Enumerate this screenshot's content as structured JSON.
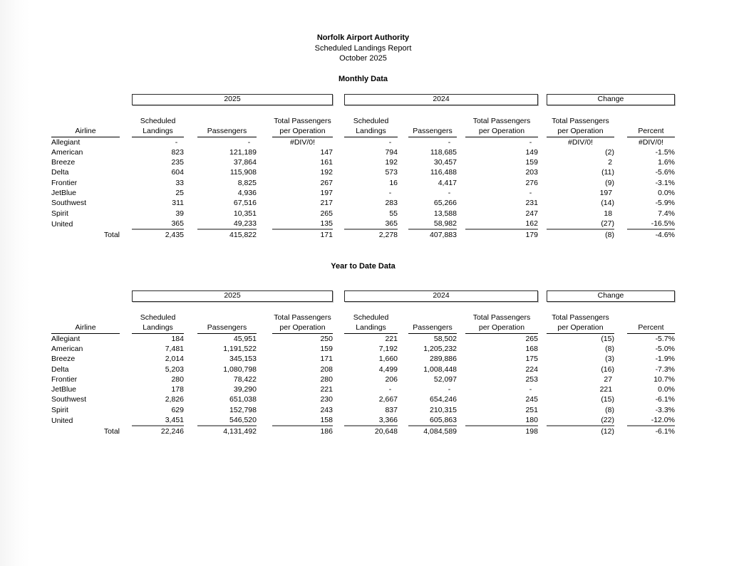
{
  "report": {
    "title": "Norfolk Airport Authority",
    "subtitle": "Scheduled Landings Report",
    "period": "October 2025"
  },
  "sections": [
    {
      "heading": "Monthly Data",
      "group_labels": [
        "2025",
        "2024",
        "Change"
      ],
      "headers_line1": [
        "",
        "Scheduled",
        "",
        "Total Passengers",
        "Scheduled",
        "",
        "Total Passengers",
        "Total Passengers",
        ""
      ],
      "headers_line2": [
        "Airline",
        "Landings",
        "Passengers",
        "per Operation",
        "Landings",
        "Passengers",
        "per Operation",
        "per Operation",
        "Percent"
      ],
      "rows": [
        {
          "airline": "Allegiant",
          "values": [
            "-   ",
            "-   ",
            "#DIV/0!",
            "-   ",
            "-   ",
            "-   ",
            "#DIV/0!",
            "#DIV/0!"
          ]
        },
        {
          "airline": "American",
          "values": [
            "823",
            "121,189",
            "147",
            "794",
            "118,685",
            "149",
            "(2)",
            "-1.5%"
          ]
        },
        {
          "airline": "Breeze",
          "values": [
            "235",
            "37,864",
            "161",
            "192",
            "30,457",
            "159",
            "2 ",
            "1.6%"
          ]
        },
        {
          "airline": "Delta",
          "values": [
            "604",
            "115,908",
            "192",
            "573",
            "116,488",
            "203",
            "(11)",
            "-5.6%"
          ]
        },
        {
          "airline": "Frontier",
          "values": [
            "33",
            "8,825",
            "267",
            "16",
            "4,417",
            "276",
            "(9)",
            "-3.1%"
          ]
        },
        {
          "airline": "JetBlue",
          "values": [
            "25",
            "4,936",
            "197",
            "-   ",
            "-   ",
            "-   ",
            "197 ",
            "0.0%"
          ]
        },
        {
          "airline": "Southwest",
          "values": [
            "311",
            "67,516",
            "217",
            "283",
            "65,266",
            "231",
            "(14)",
            "-5.9%"
          ]
        },
        {
          "airline": "Spirit",
          "values": [
            "39",
            "10,351",
            "265",
            "55",
            "13,588",
            "247",
            "18 ",
            "7.4%"
          ]
        },
        {
          "airline": "United",
          "values": [
            "365",
            "49,233",
            "135",
            "365",
            "58,982",
            "162",
            "(27)",
            "-16.5%"
          ]
        }
      ],
      "total": {
        "label": "Total",
        "values": [
          "2,435",
          "415,822",
          "171",
          "2,278",
          "407,883",
          "179",
          "(8)",
          "-4.6%"
        ]
      }
    },
    {
      "heading": "Year to Date Data",
      "group_labels": [
        "2025",
        "2024",
        "Change"
      ],
      "headers_line1": [
        "",
        "Scheduled",
        "",
        "Total Passengers",
        "Scheduled",
        "",
        "Total Passengers",
        "Total Passengers",
        ""
      ],
      "headers_line2": [
        "Airline",
        "Landings",
        "Passengers",
        "per Operation",
        "Landings",
        "Passengers",
        "per Operation",
        "per Operation",
        "Percent"
      ],
      "rows": [
        {
          "airline": "Allegiant",
          "values": [
            "184",
            "45,951",
            "250",
            "221",
            "58,502",
            "265",
            "(15)",
            "-5.7%"
          ]
        },
        {
          "airline": "American",
          "values": [
            "7,481",
            "1,191,522",
            "159",
            "7,192",
            "1,205,232",
            "168",
            "(8)",
            "-5.0%"
          ]
        },
        {
          "airline": "Breeze",
          "values": [
            "2,014",
            "345,153",
            "171",
            "1,660",
            "289,886",
            "175",
            "(3)",
            "-1.9%"
          ]
        },
        {
          "airline": "Delta",
          "values": [
            "5,203",
            "1,080,798",
            "208",
            "4,499",
            "1,008,448",
            "224",
            "(16)",
            "-7.3%"
          ]
        },
        {
          "airline": "Frontier",
          "values": [
            "280",
            "78,422",
            "280",
            "206",
            "52,097",
            "253",
            "27 ",
            "10.7%"
          ]
        },
        {
          "airline": "JetBlue",
          "values": [
            "178",
            "39,290",
            "221",
            "-   ",
            "-   ",
            "-   ",
            "221 ",
            "0.0%"
          ]
        },
        {
          "airline": "Southwest",
          "values": [
            "2,826",
            "651,038",
            "230",
            "2,667",
            "654,246",
            "245",
            "(15)",
            "-6.1%"
          ]
        },
        {
          "airline": "Spirit",
          "values": [
            "629",
            "152,798",
            "243",
            "837",
            "210,315",
            "251",
            "(8)",
            "-3.3%"
          ]
        },
        {
          "airline": "United",
          "values": [
            "3,451",
            "546,520",
            "158",
            "3,366",
            "605,863",
            "180",
            "(22)",
            "-12.0%"
          ]
        }
      ],
      "total": {
        "label": "Total",
        "values": [
          "22,246",
          "4,131,492",
          "186",
          "20,648",
          "4,084,589",
          "198",
          "(12)",
          "-6.1%"
        ]
      }
    }
  ]
}
